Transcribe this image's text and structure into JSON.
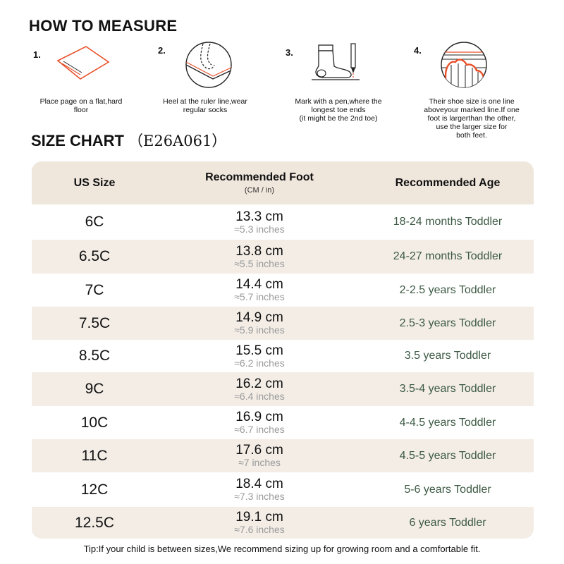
{
  "header": {
    "title": "HOW TO MEASURE"
  },
  "steps": [
    {
      "number": "1.",
      "text": "Place page on a flat,hard\nfloor",
      "icon": "paper-icon"
    },
    {
      "number": "2.",
      "text": "Heel at the ruler line,wear\nregular socks",
      "icon": "heel-ruler-icon"
    },
    {
      "number": "3.",
      "text": "Mark with a pen,where the\nlongest toe ends\n(it might be the 2nd toe)",
      "icon": "sock-pen-icon"
    },
    {
      "number": "4.",
      "text": "Their shoe size is one line\naboveyour marked line.If one\nfoot is largerthan the other,\nuse the larger size for\nboth feet.",
      "icon": "toe-line-icon"
    }
  ],
  "size_chart": {
    "title": "SIZE CHART",
    "code": "（E26A061）",
    "headers": {
      "us_size": "US Size",
      "foot": "Recommended Foot",
      "foot_sub": "(CM / in)",
      "age": "Recommended Age"
    },
    "rows": [
      {
        "size": "6C",
        "cm": "13.3 cm",
        "inch": "≈5.3 inches",
        "age": "18-24 months Toddler"
      },
      {
        "size": "6.5C",
        "cm": "13.8 cm",
        "inch": "≈5.5 inches",
        "age": "24-27 months Toddler"
      },
      {
        "size": "7C",
        "cm": "14.4 cm",
        "inch": "≈5.7 inches",
        "age": "2-2.5 years Toddler"
      },
      {
        "size": "7.5C",
        "cm": "14.9 cm",
        "inch": "≈5.9 inches",
        "age": "2.5-3 years Toddler"
      },
      {
        "size": "8.5C",
        "cm": "15.5 cm",
        "inch": "≈6.2 inches",
        "age": "3.5 years Toddler"
      },
      {
        "size": "9C",
        "cm": "16.2 cm",
        "inch": "≈6.4 inches",
        "age": "3.5-4 years Toddler"
      },
      {
        "size": "10C",
        "cm": "16.9 cm",
        "inch": "≈6.7 inches",
        "age": "4-4.5 years Toddler"
      },
      {
        "size": "11C",
        "cm": "17.6 cm",
        "inch": "≈7 inches",
        "age": "4.5-5 years Toddler"
      },
      {
        "size": "12C",
        "cm": "18.4 cm",
        "inch": "≈7.3 inches",
        "age": "5-6 years Toddler"
      },
      {
        "size": "12.5C",
        "cm": "19.1 cm",
        "inch": "≈7.6 inches",
        "age": "6 years Toddler"
      }
    ]
  },
  "tip": "Tip:If your child is between sizes,We recommend sizing up for growing room and a comfortable fit.",
  "colors": {
    "header_bg": "#efe6dc",
    "row_shade": "#f3ede6",
    "age_text": "#3d5a44",
    "accent": "#e8502a"
  }
}
